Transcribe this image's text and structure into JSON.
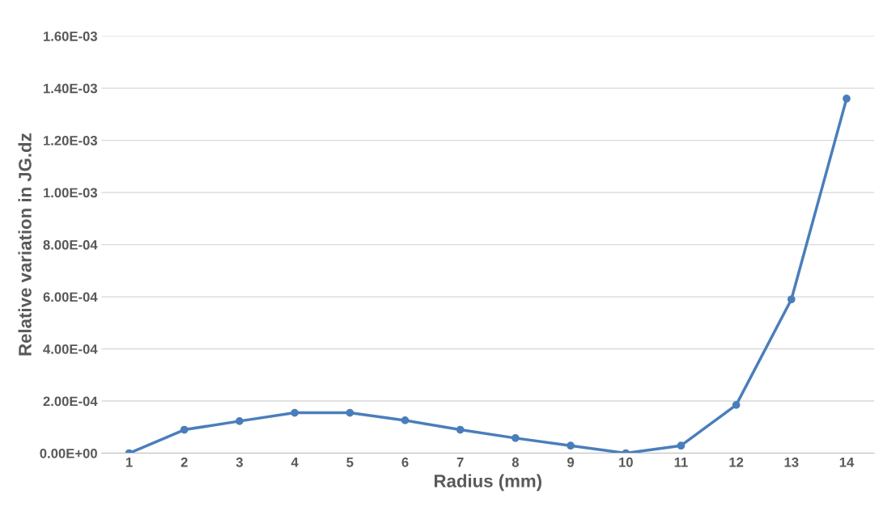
{
  "chart_data": {
    "type": "line",
    "xlabel": "Radius (mm)",
    "ylabel": "Relative variation in JG.dz",
    "categories": [
      "1",
      "2",
      "3",
      "4",
      "5",
      "6",
      "7",
      "8",
      "9",
      "10",
      "11",
      "12",
      "13",
      "14"
    ],
    "series": [
      {
        "color": "#4a7ebb",
        "values": [
          0,
          9e-05,
          0.000123,
          0.000155,
          0.000155,
          0.000126,
          9e-05,
          5.8e-05,
          2.9e-05,
          0,
          2.9e-05,
          0.000185,
          0.00059,
          0.00136
        ]
      }
    ],
    "ylim": [
      0,
      0.0016
    ],
    "yticks": [
      {
        "value": 0,
        "label": "0.00E+00"
      },
      {
        "value": 0.0002,
        "label": "2.00E-04"
      },
      {
        "value": 0.0004,
        "label": "4.00E-04"
      },
      {
        "value": 0.0006,
        "label": "6.00E-04"
      },
      {
        "value": 0.0008,
        "label": "8.00E-04"
      },
      {
        "value": 0.001,
        "label": "1.00E-03"
      },
      {
        "value": 0.0012,
        "label": "1.20E-03"
      },
      {
        "value": 0.0014,
        "label": "1.40E-03"
      },
      {
        "value": 0.0016,
        "label": "1.60E-03"
      }
    ],
    "grid": "y",
    "marker": "circle",
    "line_style": "solid"
  }
}
